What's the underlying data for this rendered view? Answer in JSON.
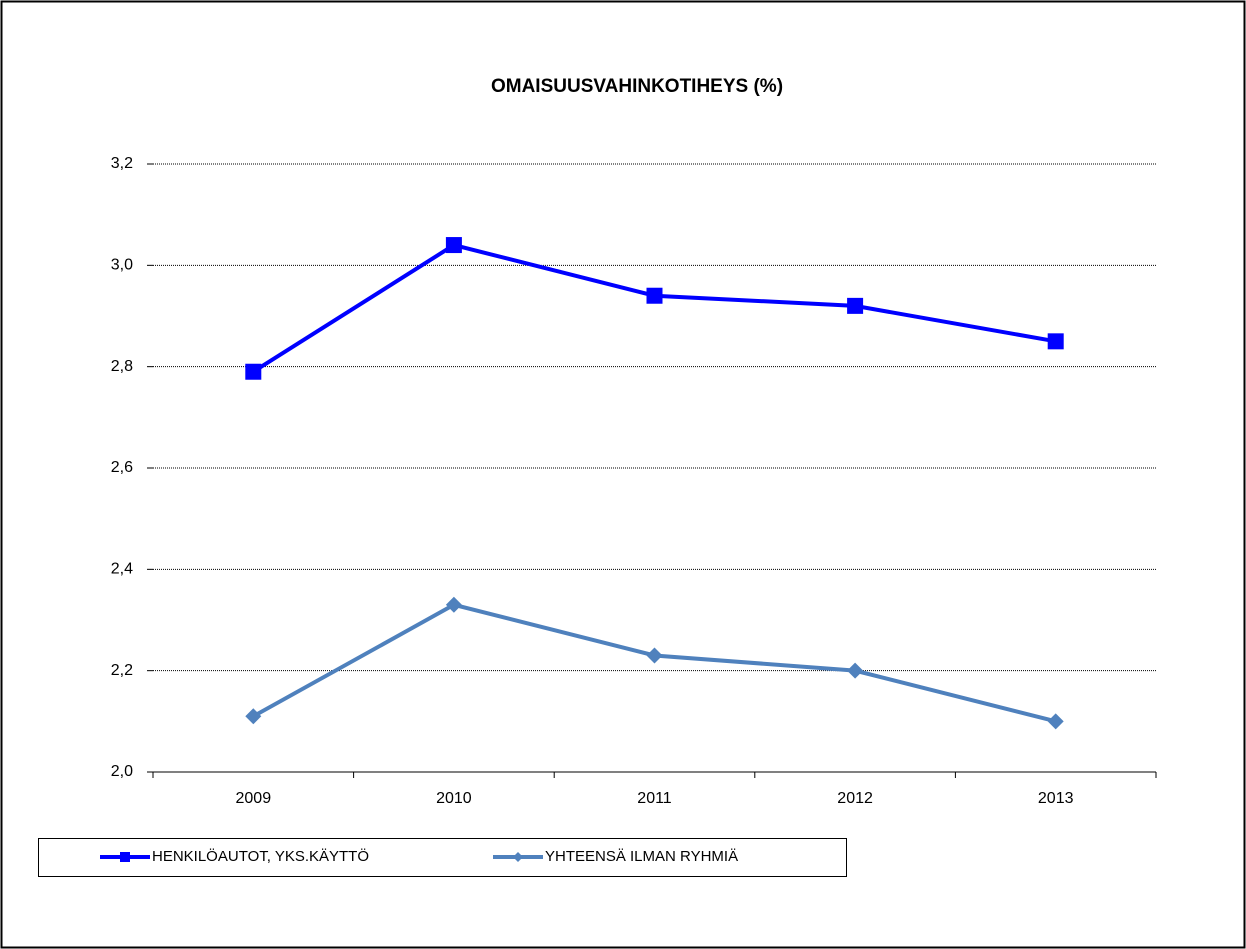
{
  "chart_data": {
    "type": "line",
    "title": "OMAISUUSVAHINKOTIHEYS (%)",
    "categories": [
      "2009",
      "2010",
      "2011",
      "2012",
      "2013"
    ],
    "series": [
      {
        "name": "HENKILÖAUTOT, YKS.KÄYTTÖ",
        "color": "#0000ff",
        "marker": "square",
        "values": [
          2.79,
          3.04,
          2.94,
          2.92,
          2.85
        ]
      },
      {
        "name": "YHTEENSÄ ILMAN RYHMIÄ",
        "color": "#4f81bd",
        "marker": "diamond",
        "values": [
          2.11,
          2.33,
          2.23,
          2.2,
          2.1
        ]
      }
    ],
    "ylim": [
      2.0,
      3.2
    ],
    "yticks": [
      {
        "value": 2.0,
        "label": "2,0"
      },
      {
        "value": 2.2,
        "label": "2,2"
      },
      {
        "value": 2.4,
        "label": "2,4"
      },
      {
        "value": 2.6,
        "label": "2,6"
      },
      {
        "value": 2.8,
        "label": "2,8"
      },
      {
        "value": 3.0,
        "label": "3,0"
      },
      {
        "value": 3.2,
        "label": "3,2"
      }
    ],
    "grid": true,
    "legend": "bottom"
  }
}
